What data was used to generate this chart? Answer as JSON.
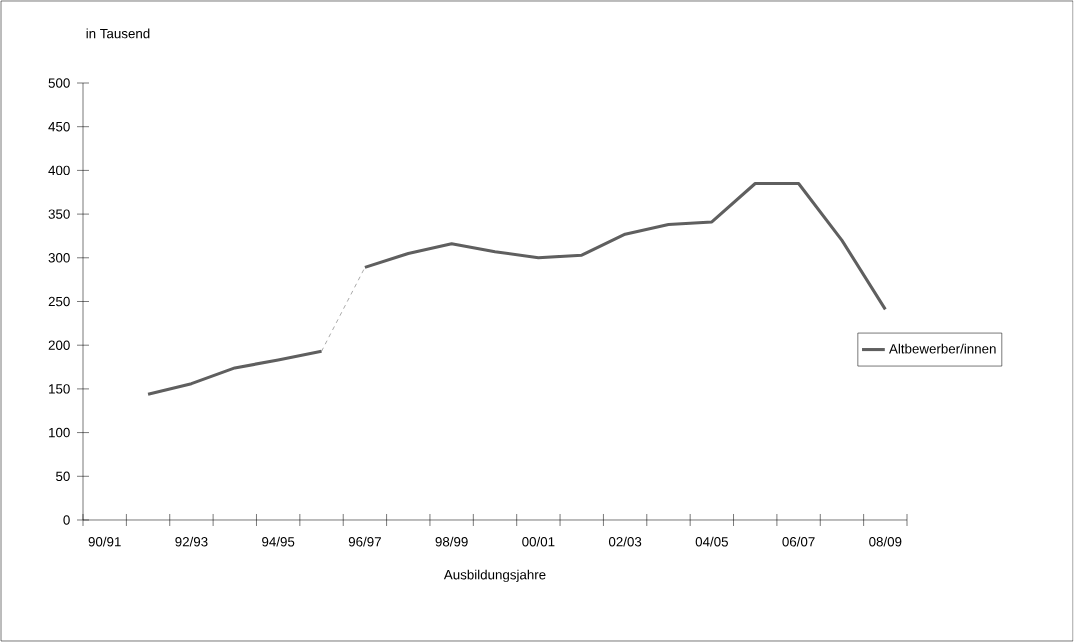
{
  "chart_data": {
    "type": "line",
    "xlabel": "Ausbildungsjahre",
    "ylabel": "in Tausend",
    "categories": [
      "90/91",
      null,
      "92/93",
      null,
      "94/95",
      null,
      "96/97",
      null,
      "98/99",
      null,
      "00/01",
      null,
      "02/03",
      null,
      "04/05",
      null,
      "06/07",
      null,
      "08/09"
    ],
    "series": [
      {
        "name": "Altbewerber/innen",
        "color": "#5f5f5f",
        "values": [
          null,
          144,
          156,
          174,
          183,
          193,
          null,
          null,
          null,
          null,
          null,
          null,
          null,
          null,
          null,
          null,
          null,
          null,
          null
        ]
      },
      {
        "color": "#5f5f5f",
        "values": [
          null,
          null,
          null,
          null,
          null,
          null,
          289,
          305,
          316,
          307,
          300,
          303,
          327,
          338,
          341,
          385,
          385,
          320,
          241
        ]
      },
      {
        "color": "#5f5f5f",
        "line_style": "dashed",
        "values": [
          null,
          null,
          null,
          null,
          null,
          193,
          289,
          null,
          null,
          null,
          null,
          null,
          null,
          null,
          null,
          null,
          null,
          null,
          null
        ]
      }
    ],
    "ylim": [
      0,
      500
    ],
    "yticks": [
      0,
      50,
      100,
      150,
      200,
      250,
      300,
      350,
      400,
      450,
      500
    ],
    "line_style": "solid",
    "marker": "none",
    "grid": false,
    "legend": "right"
  }
}
